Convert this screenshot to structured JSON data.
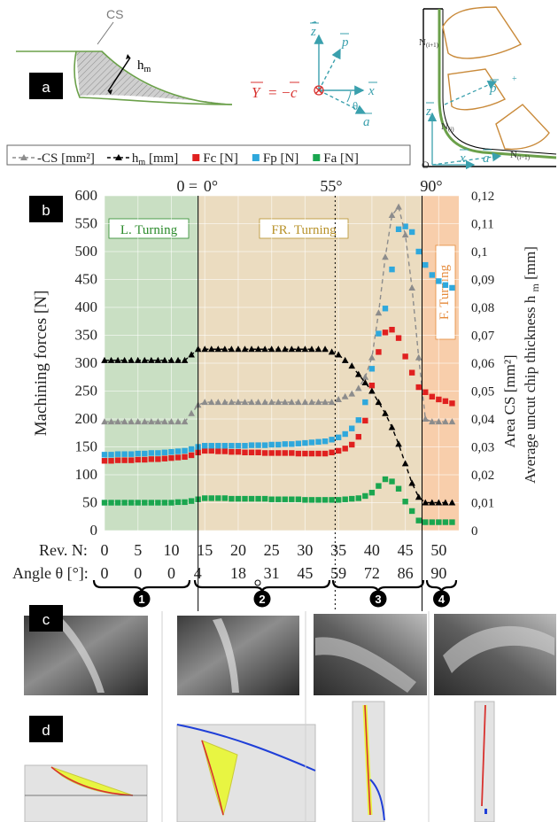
{
  "panel_labels": {
    "a": "a",
    "b": "b",
    "c": "c",
    "d": "d"
  },
  "schematic": {
    "cs_label": "CS",
    "hm_label": "h",
    "hm_sub": "m",
    "vec_z": "z",
    "vec_p": "p",
    "vec_x": "x",
    "vec_a": "a",
    "vec_y": "Y",
    "vec_c": "c",
    "eq_sign": "=",
    "minus": "−",
    "theta": "θ",
    "node_top": "N",
    "node_top_sub": "(i+1)",
    "node_mid": "N",
    "node_mid_sub": "(i)",
    "node_bot": "N",
    "node_bot_sub": "(i−1)",
    "origin": "O",
    "plus": "+"
  },
  "chart_data": {
    "type": "scatter",
    "xlabel": "Rev. N:",
    "ylabel": "Machining forces [N]",
    "ylabel_right_1": "Area CS [mm²]",
    "ylabel_right_2": "Average uncut chip thickness h",
    "ylabel_right_2_sub": "m",
    "ylabel_right_2_unit": "[mm]",
    "xlim": [
      0,
      53
    ],
    "ylim": [
      0,
      600
    ],
    "ylim_right": [
      0,
      0.12
    ],
    "x_ticks": [
      "0",
      "5",
      "10",
      "15",
      "20",
      "25",
      "30",
      "35",
      "40",
      "45",
      "50"
    ],
    "y_ticks": [
      "0",
      "50",
      "100",
      "150",
      "200",
      "250",
      "300",
      "350",
      "400",
      "450",
      "500",
      "550",
      "600"
    ],
    "y2_ticks": [
      "0",
      "0,01",
      "0,02",
      "0,03",
      "0,04",
      "0,05",
      "0,06",
      "0,07",
      "0,08",
      "0,09",
      "0,1",
      "0,11",
      "0,12"
    ],
    "angle_row_label": "Angle θ [°]:",
    "angle_labels": [
      "0",
      "0",
      "0",
      "4",
      "18",
      "31",
      "45",
      "59",
      "72",
      "86",
      "90"
    ],
    "angle_top_labels": [
      "0",
      "=",
      "0°",
      "55°",
      "90°"
    ],
    "legend": [
      {
        "name": "-CS [mm²]",
        "color": "#8c8c8c",
        "marker": "triangle-dashed"
      },
      {
        "name": "h",
        "sub": "m",
        "unit": "[mm]",
        "color": "#000000",
        "marker": "triangle-dashed"
      },
      {
        "name": "Fc [N]",
        "color": "#e0201f",
        "marker": "square"
      },
      {
        "name": "Fp [N]",
        "color": "#2fa8dc",
        "marker": "square"
      },
      {
        "name": "Fa [N]",
        "color": "#1aa64f",
        "marker": "square"
      }
    ],
    "zones": [
      {
        "label": "L. Turning",
        "x0": 0,
        "x1": 14,
        "color": "#c9dfc3",
        "text": "#2a8a2a"
      },
      {
        "label": "FR. Turning",
        "x0": 14,
        "x1": 47.5,
        "color": "#ebdcc0",
        "text": "#b8922a"
      },
      {
        "label": "F. Turning",
        "x0": 47.5,
        "x1": 53,
        "color": "#f8ceab",
        "text": "#e58a3a"
      }
    ],
    "stage_numbers": [
      "1",
      "2",
      "3",
      "4"
    ],
    "series": [
      {
        "name": "Fc [N]",
        "color": "#e0201f",
        "x": [
          0,
          1,
          2,
          3,
          4,
          5,
          6,
          7,
          8,
          9,
          10,
          11,
          12,
          13,
          14,
          15,
          16,
          17,
          18,
          19,
          20,
          21,
          22,
          23,
          24,
          25,
          26,
          27,
          28,
          29,
          30,
          31,
          32,
          33,
          34,
          35,
          36,
          37,
          38,
          39,
          40,
          41,
          42,
          43,
          44,
          45,
          46,
          47,
          48,
          49,
          50,
          51,
          52
        ],
        "values": [
          125,
          125,
          126,
          126,
          126,
          127,
          127,
          128,
          128,
          129,
          130,
          131,
          132,
          135,
          140,
          143,
          143,
          142,
          142,
          141,
          141,
          140,
          140,
          140,
          139,
          139,
          139,
          139,
          139,
          138,
          138,
          138,
          138,
          138,
          140,
          143,
          147,
          154,
          168,
          197,
          260,
          320,
          355,
          360,
          345,
          312,
          283,
          257,
          248,
          240,
          235,
          232,
          228
        ]
      },
      {
        "name": "Fp [N]",
        "color": "#2fa8dc",
        "x": [
          0,
          1,
          2,
          3,
          4,
          5,
          6,
          7,
          8,
          9,
          10,
          11,
          12,
          13,
          14,
          15,
          16,
          17,
          18,
          19,
          20,
          21,
          22,
          23,
          24,
          25,
          26,
          27,
          28,
          29,
          30,
          31,
          32,
          33,
          34,
          35,
          36,
          37,
          38,
          39,
          40,
          41,
          42,
          43,
          44,
          45,
          46,
          47,
          48,
          49,
          50,
          51,
          52
        ],
        "values": [
          136,
          136,
          137,
          137,
          137,
          138,
          138,
          139,
          139,
          140,
          141,
          142,
          143,
          146,
          150,
          152,
          152,
          152,
          152,
          152,
          152,
          152,
          153,
          153,
          153,
          154,
          154,
          155,
          155,
          156,
          157,
          158,
          159,
          160,
          163,
          167,
          173,
          183,
          198,
          230,
          290,
          353,
          398,
          468,
          540,
          545,
          535,
          500,
          476,
          458,
          447,
          440,
          435
        ]
      },
      {
        "name": "Fa [N]",
        "color": "#1aa64f",
        "x": [
          0,
          1,
          2,
          3,
          4,
          5,
          6,
          7,
          8,
          9,
          10,
          11,
          12,
          13,
          14,
          15,
          16,
          17,
          18,
          19,
          20,
          21,
          22,
          23,
          24,
          25,
          26,
          27,
          28,
          29,
          30,
          31,
          32,
          33,
          34,
          35,
          36,
          37,
          38,
          39,
          40,
          41,
          42,
          43,
          44,
          45,
          46,
          47,
          48,
          49,
          50,
          51,
          52
        ],
        "values": [
          50,
          50,
          50,
          50,
          50,
          50,
          50,
          50,
          50,
          50,
          50,
          51,
          51,
          53,
          56,
          58,
          58,
          58,
          58,
          57,
          57,
          57,
          57,
          57,
          57,
          56,
          56,
          56,
          56,
          56,
          55,
          55,
          55,
          55,
          55,
          55,
          56,
          57,
          58,
          62,
          68,
          80,
          92,
          88,
          75,
          52,
          35,
          18,
          15,
          15,
          15,
          15,
          15
        ]
      },
      {
        "name": "-CS [mm²]",
        "color": "#8c8c8c",
        "axis": "right",
        "x": [
          0,
          1,
          2,
          3,
          4,
          5,
          6,
          7,
          8,
          9,
          10,
          11,
          12,
          13,
          14,
          15,
          16,
          17,
          18,
          19,
          20,
          21,
          22,
          23,
          24,
          25,
          26,
          27,
          28,
          29,
          30,
          31,
          32,
          33,
          34,
          35,
          36,
          37,
          38,
          39,
          40,
          41,
          42,
          43,
          44,
          45,
          46,
          47,
          48,
          49,
          50,
          51,
          52
        ],
        "values": [
          0.039,
          0.039,
          0.039,
          0.039,
          0.039,
          0.039,
          0.039,
          0.039,
          0.039,
          0.039,
          0.039,
          0.039,
          0.039,
          0.042,
          0.045,
          0.046,
          0.046,
          0.046,
          0.046,
          0.046,
          0.046,
          0.046,
          0.046,
          0.046,
          0.046,
          0.046,
          0.046,
          0.046,
          0.046,
          0.046,
          0.046,
          0.046,
          0.046,
          0.046,
          0.046,
          0.047,
          0.048,
          0.049,
          0.051,
          0.055,
          0.062,
          0.078,
          0.098,
          0.113,
          0.116,
          0.106,
          0.087,
          0.062,
          0.04,
          0.039,
          0.039,
          0.039,
          0.039
        ]
      },
      {
        "name": "h",
        "color": "#000000",
        "axis": "right",
        "x": [
          0,
          1,
          2,
          3,
          4,
          5,
          6,
          7,
          8,
          9,
          10,
          11,
          12,
          13,
          14,
          15,
          16,
          17,
          18,
          19,
          20,
          21,
          22,
          23,
          24,
          25,
          26,
          27,
          28,
          29,
          30,
          31,
          32,
          33,
          34,
          35,
          36,
          37,
          38,
          39,
          40,
          41,
          42,
          43,
          44,
          45,
          46,
          47,
          48,
          49,
          50,
          51,
          52
        ],
        "values": [
          0.061,
          0.061,
          0.061,
          0.061,
          0.061,
          0.061,
          0.061,
          0.061,
          0.061,
          0.061,
          0.061,
          0.061,
          0.061,
          0.063,
          0.065,
          0.065,
          0.065,
          0.065,
          0.065,
          0.065,
          0.065,
          0.065,
          0.065,
          0.065,
          0.065,
          0.065,
          0.065,
          0.065,
          0.065,
          0.065,
          0.065,
          0.065,
          0.065,
          0.065,
          0.064,
          0.063,
          0.061,
          0.059,
          0.056,
          0.053,
          0.05,
          0.046,
          0.042,
          0.037,
          0.031,
          0.024,
          0.017,
          0.012,
          0.01,
          0.01,
          0.01,
          0.01,
          0.01
        ]
      }
    ]
  }
}
